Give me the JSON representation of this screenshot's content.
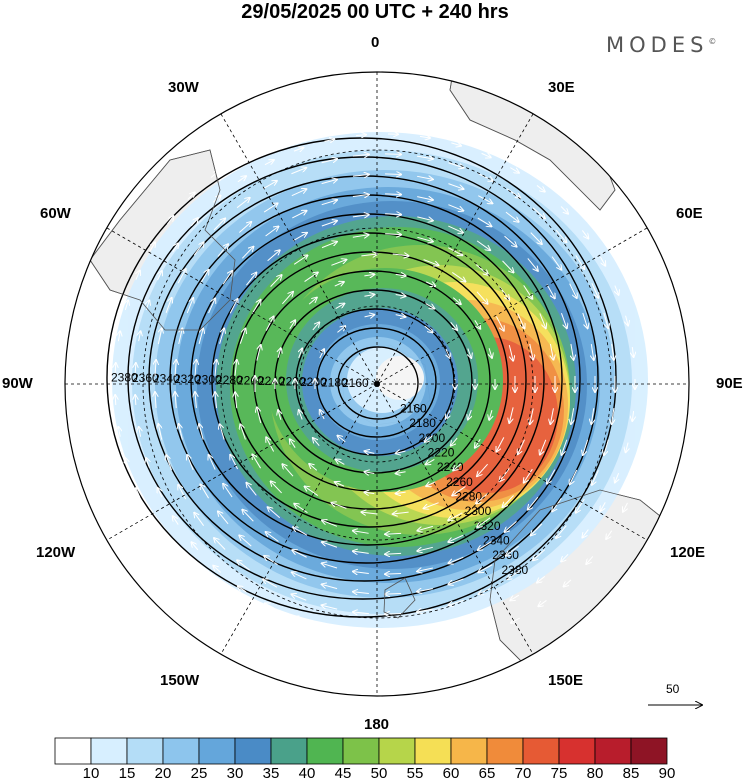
{
  "title": "29/05/2025  00 UTC  + 240 hrs",
  "brand": "MODES",
  "brand_mark": "©",
  "lon_labels": {
    "l0": "0",
    "l30e": "30E",
    "l60e": "60E",
    "l90e": "90E",
    "l120e": "120E",
    "l150e": "150E",
    "l180": "180",
    "l150w": "150W",
    "l120w": "120W",
    "l90w": "90W",
    "l60w": "60W",
    "l30w": "30W"
  },
  "contours": [
    {
      "value": 2160,
      "label": "2160"
    },
    {
      "value": 2180,
      "label": "2180"
    },
    {
      "value": 2200,
      "label": "2200"
    },
    {
      "value": 2220,
      "label": "2220"
    },
    {
      "value": 2240,
      "label": "2240"
    },
    {
      "value": 2260,
      "label": "2260"
    },
    {
      "value": 2280,
      "label": "2280"
    },
    {
      "value": 2300,
      "label": "2300"
    },
    {
      "value": 2320,
      "label": "2320"
    },
    {
      "value": 2340,
      "label": "2340"
    },
    {
      "value": 2360,
      "label": "2360"
    },
    {
      "value": 2380,
      "label": "2380"
    }
  ],
  "colorbar": {
    "ticks": [
      "10",
      "15",
      "20",
      "25",
      "30",
      "35",
      "40",
      "45",
      "50",
      "55",
      "60",
      "65",
      "70",
      "75",
      "80",
      "85",
      "90"
    ],
    "colors": [
      "#ffffff",
      "#d7efff",
      "#b4ddf7",
      "#8dc5ed",
      "#64a6db",
      "#4a8bc6",
      "#4aa18a",
      "#50b551",
      "#7dc249",
      "#b6d54a",
      "#f5df55",
      "#f6b649",
      "#f08b3a",
      "#e65a34",
      "#d7312f",
      "#b81d2c",
      "#8e1425"
    ]
  },
  "ref_vector_label": "50",
  "colors": {
    "land": "#eeeeee",
    "coast": "#555555",
    "grid": "#000000"
  }
}
